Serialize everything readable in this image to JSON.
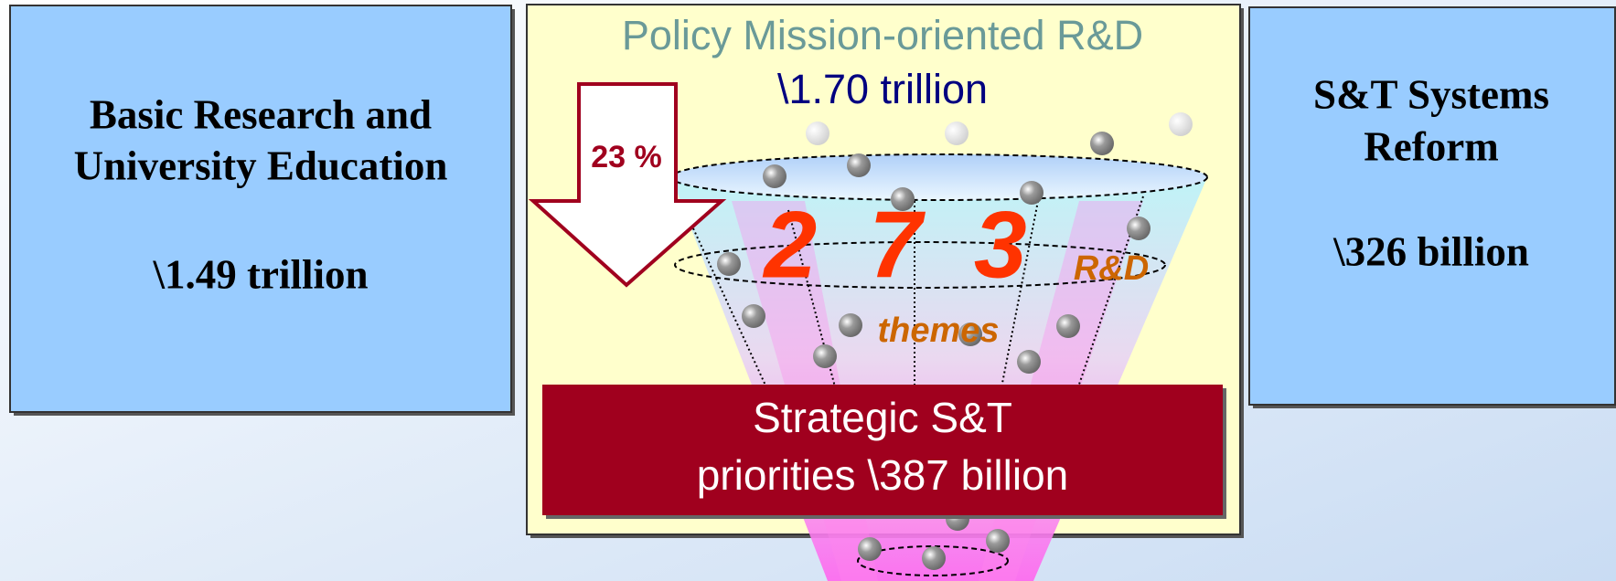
{
  "left_box": {
    "lines": [
      "Basic Research and",
      "University Education"
    ],
    "amount": "\\1.49 trillion"
  },
  "center_box": {
    "title": "Policy Mission-oriented R&D",
    "amount": "\\1.70 trillion",
    "reduction": "23 %",
    "themes_count": "2 7 3",
    "rd_label": "R&D",
    "themes_label": "themes",
    "strategic": {
      "lines": [
        "Strategic S&T",
        "priorities \\387 billion"
      ]
    }
  },
  "right_box": {
    "lines": [
      "S&T Systems",
      "Reform"
    ],
    "amount": "\\326 billion"
  }
}
